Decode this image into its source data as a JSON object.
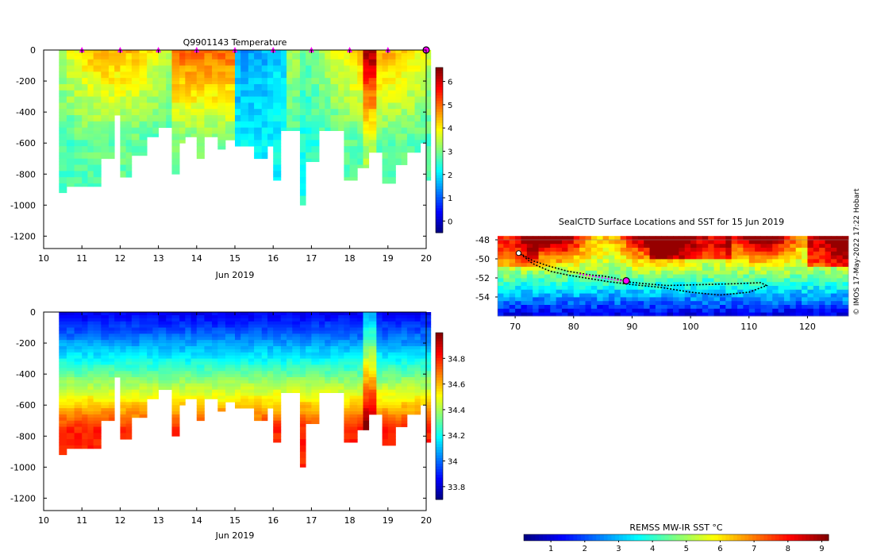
{
  "chart_data": [
    {
      "type": "heatmap",
      "id": "temperature-section",
      "title": "Q9901143  Temperature",
      "xlabel": "Jun 2019",
      "xlim": [
        10,
        20
      ],
      "ylim": [
        -1280,
        0
      ],
      "xticks": [
        10,
        11,
        12,
        13,
        14,
        15,
        16,
        17,
        18,
        19,
        20
      ],
      "xtick_labels": [
        "10",
        "11",
        "12",
        "13",
        "14",
        "15",
        "16",
        "17",
        "18",
        "19",
        "20"
      ],
      "yticks": [
        0,
        -200,
        -400,
        -600,
        -800,
        -1000,
        -1200
      ],
      "ytick_labels": [
        "0",
        "-200",
        "-400",
        "-600",
        "-800",
        "-1000",
        "-1200"
      ],
      "day_markers": [
        11,
        12,
        13,
        14,
        15,
        16,
        17,
        18,
        19
      ],
      "current_marker": 20,
      "colorbar": {
        "min": -0.5,
        "max": 6.6,
        "ticks": [
          0,
          1,
          2,
          3,
          4,
          5,
          6
        ],
        "tick_labels": [
          "0",
          "1",
          "2",
          "3",
          "4",
          "5",
          "6"
        ],
        "colormap": "jet"
      },
      "profiles": [
        {
          "t": 10.4,
          "maxdepth": 920
        },
        {
          "t": 10.6,
          "maxdepth": 880
        },
        {
          "t": 10.8,
          "maxdepth": 880
        },
        {
          "t": 11.0,
          "maxdepth": 880
        },
        {
          "t": 11.15,
          "maxdepth": 880
        },
        {
          "t": 11.3,
          "maxdepth": 880
        },
        {
          "t": 11.5,
          "maxdepth": 700
        },
        {
          "t": 11.7,
          "maxdepth": 700
        },
        {
          "t": 11.85,
          "maxdepth": 420
        },
        {
          "t": 12.0,
          "maxdepth": 810
        },
        {
          "t": 12.15,
          "maxdepth": 810
        },
        {
          "t": 12.3,
          "maxdepth": 680
        },
        {
          "t": 12.5,
          "maxdepth": 680
        },
        {
          "t": 12.7,
          "maxdepth": 550
        },
        {
          "t": 12.85,
          "maxdepth": 550
        },
        {
          "t": 13.0,
          "maxdepth": 500
        },
        {
          "t": 13.2,
          "maxdepth": 500
        },
        {
          "t": 13.35,
          "maxdepth": 790
        },
        {
          "t": 13.55,
          "maxdepth": 590
        },
        {
          "t": 13.7,
          "maxdepth": 550
        },
        {
          "t": 13.85,
          "maxdepth": 550
        },
        {
          "t": 14.0,
          "maxdepth": 700
        },
        {
          "t": 14.2,
          "maxdepth": 550
        },
        {
          "t": 14.4,
          "maxdepth": 550
        },
        {
          "t": 14.55,
          "maxdepth": 640
        },
        {
          "t": 14.75,
          "maxdepth": 580
        },
        {
          "t": 15.0,
          "maxdepth": 610
        },
        {
          "t": 15.15,
          "maxdepth": 610
        },
        {
          "t": 15.35,
          "maxdepth": 620
        },
        {
          "t": 15.5,
          "maxdepth": 700
        },
        {
          "t": 15.7,
          "maxdepth": 700
        },
        {
          "t": 15.85,
          "maxdepth": 620
        },
        {
          "t": 16.0,
          "maxdepth": 830
        },
        {
          "t": 16.2,
          "maxdepth": 520
        },
        {
          "t": 16.35,
          "maxdepth": 520
        },
        {
          "t": 16.5,
          "maxdepth": 520
        },
        {
          "t": 16.7,
          "maxdepth": 1000
        },
        {
          "t": 16.85,
          "maxdepth": 710
        },
        {
          "t": 17.0,
          "maxdepth": 710
        },
        {
          "t": 17.2,
          "maxdepth": 520
        },
        {
          "t": 17.35,
          "maxdepth": 520
        },
        {
          "t": 17.5,
          "maxdepth": 520
        },
        {
          "t": 17.7,
          "maxdepth": 520
        },
        {
          "t": 17.85,
          "maxdepth": 840
        },
        {
          "t": 18.0,
          "maxdepth": 840
        },
        {
          "t": 18.2,
          "maxdepth": 760
        },
        {
          "t": 18.35,
          "maxdepth": 760
        },
        {
          "t": 18.5,
          "maxdepth": 650
        },
        {
          "t": 18.7,
          "maxdepth": 650
        },
        {
          "t": 18.85,
          "maxdepth": 850
        },
        {
          "t": 19.0,
          "maxdepth": 850
        },
        {
          "t": 19.2,
          "maxdepth": 740
        },
        {
          "t": 19.35,
          "maxdepth": 740
        },
        {
          "t": 19.5,
          "maxdepth": 650
        },
        {
          "t": 19.7,
          "maxdepth": 650
        },
        {
          "t": 19.85,
          "maxdepth": 600
        },
        {
          "t": 20.0,
          "maxdepth": 840
        }
      ]
    },
    {
      "type": "heatmap",
      "id": "salinity-section",
      "title": "",
      "xlabel": "Jun 2019",
      "xlim": [
        10,
        20
      ],
      "ylim": [
        -1280,
        0
      ],
      "xticks": [
        10,
        11,
        12,
        13,
        14,
        15,
        16,
        17,
        18,
        19,
        20
      ],
      "xtick_labels": [
        "10",
        "11",
        "12",
        "13",
        "14",
        "15",
        "16",
        "17",
        "18",
        "19",
        "20"
      ],
      "yticks": [
        0,
        -200,
        -400,
        -600,
        -800,
        -1000,
        -1200
      ],
      "ytick_labels": [
        "0",
        "-200",
        "-400",
        "-600",
        "-800",
        "-1000",
        "-1200"
      ],
      "colorbar": {
        "min": 33.7,
        "max": 35.0,
        "ticks": [
          33.8,
          34,
          34.2,
          34.4,
          34.6,
          34.8
        ],
        "tick_labels": [
          "33.8",
          "34",
          "34.2",
          "34.4",
          "34.6",
          "34.8"
        ],
        "colormap": "jet"
      }
    },
    {
      "type": "heatmap",
      "id": "sst-map",
      "title": "SealCTD Surface Locations and SST for 15 Jun 2019",
      "xlabel": "",
      "xlim": [
        67,
        127
      ],
      "ylim": [
        -56,
        -48
      ],
      "xticks": [
        70,
        80,
        90,
        100,
        110,
        120
      ],
      "xtick_labels": [
        "70",
        "80",
        "90",
        "100",
        "110",
        "120"
      ],
      "yticks": [
        -48,
        -50,
        -52,
        -54
      ],
      "ytick_labels": [
        "-48",
        "-50",
        "-52",
        "-54"
      ],
      "track_lon": [
        70.5,
        73,
        76,
        79,
        82,
        86,
        90,
        95,
        100,
        105,
        110,
        113,
        112,
        108,
        102,
        96,
        92,
        89,
        87,
        85,
        83,
        81,
        79,
        76,
        73,
        70.5
      ],
      "track_lat": [
        -49.3,
        -50.5,
        -51.3,
        -51.7,
        -52.0,
        -52.4,
        -52.7,
        -53.0,
        -53.5,
        -53.8,
        -53.5,
        -52.8,
        -52.5,
        -52.6,
        -52.7,
        -52.8,
        -52.6,
        -52.4,
        -52.0,
        -51.8,
        -51.7,
        -51.5,
        -51.3,
        -50.8,
        -50.2,
        -49.3
      ],
      "recent_lon": [
        81,
        82,
        83,
        84,
        85,
        86,
        87,
        88,
        89
      ],
      "recent_lat": [
        -51.6,
        -51.7,
        -51.8,
        -51.9,
        -52.0,
        -52.1,
        -52.2,
        -52.3,
        -52.3
      ],
      "current_position": [
        89,
        -52.3
      ],
      "colorbar": {
        "min": 0.2,
        "max": 9.2,
        "ticks": [
          1,
          2,
          3,
          4,
          5,
          6,
          7,
          8,
          9
        ],
        "tick_labels": [
          "1",
          "2",
          "3",
          "4",
          "5",
          "6",
          "7",
          "8",
          "9"
        ],
        "colormap": "jet",
        "label": "REMSS MW-IR SST °C"
      }
    }
  ],
  "credit": "©  IMOS 17-May-2022 17:22 Hobart",
  "colors": {
    "marker": "#ff00ff",
    "track": "#000000",
    "land_free_background": "#ffffff"
  }
}
